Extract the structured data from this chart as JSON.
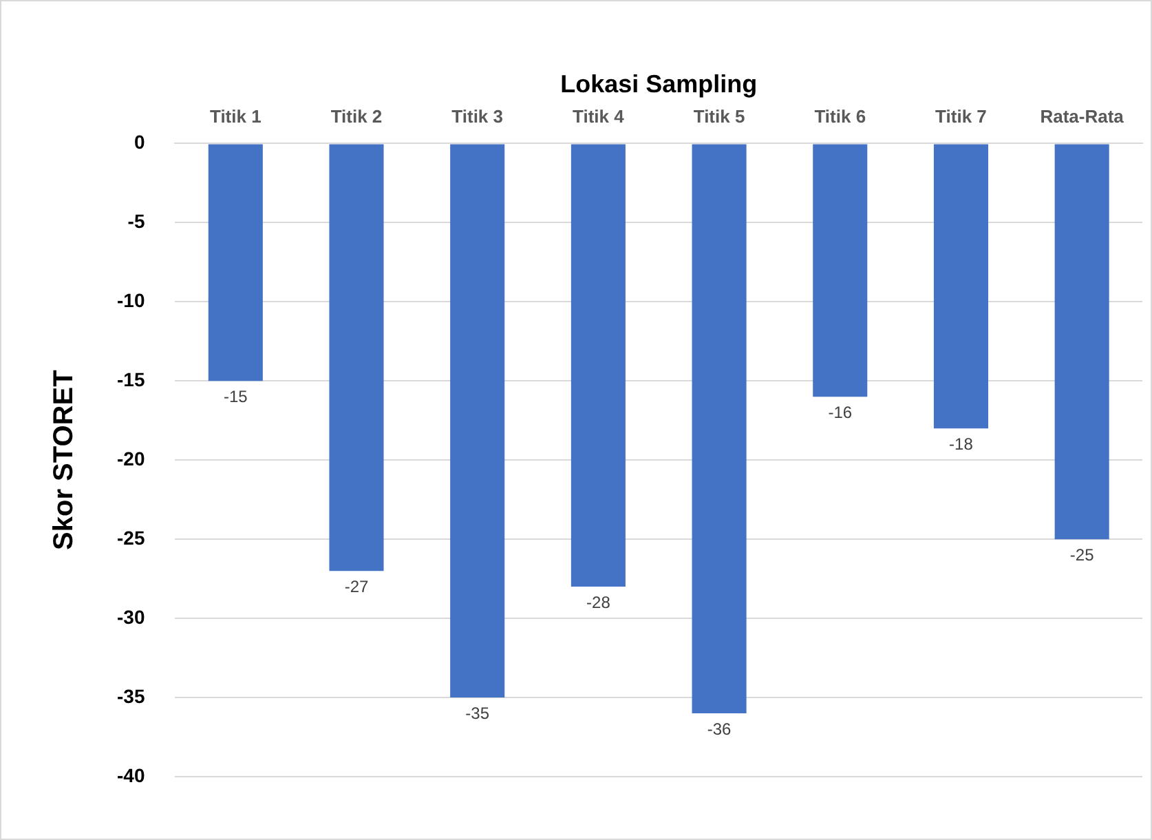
{
  "chart_data": {
    "type": "bar",
    "xlabel": "Lokasi Sampling",
    "ylabel": "Skor STORET",
    "categories": [
      "Titik 1",
      "Titik 2",
      "Titik 3",
      "Titik 4",
      "Titik 5",
      "Titik 6",
      "Titik 7",
      "Rata-Rata"
    ],
    "values": [
      -15,
      -27,
      -35,
      -28,
      -36,
      -16,
      -18,
      -25
    ],
    "color": "#4472c4",
    "ylim": [
      -40,
      0
    ],
    "yticks": [
      0,
      -5,
      -10,
      -15,
      -20,
      -25,
      -30,
      -35,
      -40
    ],
    "grid": "y",
    "legend": false,
    "data_labels": true
  }
}
